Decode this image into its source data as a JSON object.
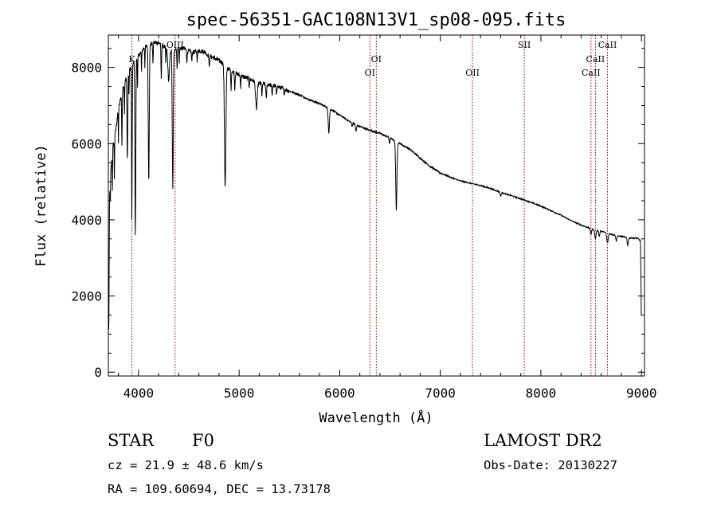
{
  "chart_data": {
    "type": "line",
    "title": "spec-56351-GAC108N13V1_sp08-095.fits",
    "xlabel": "Wavelength (Å)",
    "ylabel": "Flux (relative)",
    "xlim": [
      3700,
      9030
    ],
    "ylim": [
      -100,
      8850
    ],
    "x_ticks": [
      4000,
      5000,
      6000,
      7000,
      8000,
      9000
    ],
    "y_ticks": [
      0,
      2000,
      4000,
      6000,
      8000
    ],
    "grid": false,
    "line_color": "#000000",
    "marker_color": "#8b0000",
    "continuum": [
      [
        3705,
        1100
      ],
      [
        3712,
        4600
      ],
      [
        3725,
        5300
      ],
      [
        3745,
        5900
      ],
      [
        3770,
        6300
      ],
      [
        3800,
        6900
      ],
      [
        3830,
        7300
      ],
      [
        3860,
        7600
      ],
      [
        3900,
        7900
      ],
      [
        3950,
        8100
      ],
      [
        4000,
        8300
      ],
      [
        4050,
        8500
      ],
      [
        4100,
        8600
      ],
      [
        4150,
        8650
      ],
      [
        4200,
        8650
      ],
      [
        4250,
        8550
      ],
      [
        4300,
        8450
      ],
      [
        4350,
        8500
      ],
      [
        4400,
        8500
      ],
      [
        4450,
        8500
      ],
      [
        4500,
        8420
      ],
      [
        4550,
        8400
      ],
      [
        4600,
        8440
      ],
      [
        4650,
        8420
      ],
      [
        4700,
        8300
      ],
      [
        4750,
        8250
      ],
      [
        4800,
        8180
      ],
      [
        4850,
        8100
      ],
      [
        4900,
        7950
      ],
      [
        4950,
        7870
      ],
      [
        5000,
        7800
      ],
      [
        5100,
        7700
      ],
      [
        5200,
        7580
      ],
      [
        5300,
        7550
      ],
      [
        5400,
        7480
      ],
      [
        5500,
        7380
      ],
      [
        5600,
        7280
      ],
      [
        5700,
        7150
      ],
      [
        5800,
        7050
      ],
      [
        5900,
        6920
      ],
      [
        6000,
        6750
      ],
      [
        6100,
        6580
      ],
      [
        6200,
        6450
      ],
      [
        6300,
        6350
      ],
      [
        6400,
        6270
      ],
      [
        6500,
        6150
      ],
      [
        6600,
        6000
      ],
      [
        6700,
        5850
      ],
      [
        6800,
        5620
      ],
      [
        6900,
        5400
      ],
      [
        7000,
        5230
      ],
      [
        7100,
        5120
      ],
      [
        7200,
        5020
      ],
      [
        7300,
        4960
      ],
      [
        7400,
        4900
      ],
      [
        7500,
        4820
      ],
      [
        7600,
        4720
      ],
      [
        7700,
        4640
      ],
      [
        7800,
        4550
      ],
      [
        7900,
        4460
      ],
      [
        8000,
        4360
      ],
      [
        8100,
        4240
      ],
      [
        8200,
        4120
      ],
      [
        8300,
        3980
      ],
      [
        8400,
        3860
      ],
      [
        8500,
        3770
      ],
      [
        8600,
        3700
      ],
      [
        8700,
        3620
      ],
      [
        8800,
        3560
      ],
      [
        8900,
        3520
      ],
      [
        8960,
        3520
      ],
      [
        8990,
        3450
      ],
      [
        8995,
        2500
      ],
      [
        9000,
        800
      ]
    ],
    "absorption": [
      [
        3720,
        600,
        2
      ],
      [
        3740,
        1000,
        2
      ],
      [
        3760,
        1100,
        2
      ],
      [
        3800,
        900,
        2
      ],
      [
        3835,
        1400,
        3
      ],
      [
        3860,
        800,
        2
      ],
      [
        3889,
        2200,
        4
      ],
      [
        3905,
        700,
        2
      ],
      [
        3933.7,
        4100,
        3
      ],
      [
        3968.5,
        4600,
        4
      ],
      [
        3990,
        800,
        2
      ],
      [
        4030,
        600,
        2
      ],
      [
        4063,
        500,
        2
      ],
      [
        4101.7,
        3600,
        5
      ],
      [
        4143,
        500,
        3
      ],
      [
        4226,
        900,
        3
      ],
      [
        4271,
        400,
        2
      ],
      [
        4300,
        800,
        8
      ],
      [
        4340.5,
        3700,
        5
      ],
      [
        4383,
        500,
        3
      ],
      [
        4405,
        400,
        2
      ],
      [
        4481,
        300,
        3
      ],
      [
        4530,
        250,
        3
      ],
      [
        4584,
        250,
        3
      ],
      [
        4703,
        300,
        3
      ],
      [
        4861.3,
        3200,
        7
      ],
      [
        4920,
        500,
        3
      ],
      [
        4957,
        450,
        3
      ],
      [
        5015,
        300,
        3
      ],
      [
        5100,
        200,
        3
      ],
      [
        5172,
        700,
        8
      ],
      [
        5227,
        350,
        3
      ],
      [
        5270,
        400,
        4
      ],
      [
        5328,
        300,
        3
      ],
      [
        5371,
        200,
        3
      ],
      [
        5447,
        200,
        3
      ],
      [
        5892,
        650,
        6
      ],
      [
        6122,
        100,
        4
      ],
      [
        6162,
        180,
        5
      ],
      [
        6495,
        150,
        4
      ],
      [
        6562.8,
        1800,
        6
      ],
      [
        7600,
        100,
        5
      ],
      [
        8498,
        150,
        6
      ],
      [
        8542,
        220,
        7
      ],
      [
        8580,
        150,
        5
      ],
      [
        8662,
        250,
        7
      ],
      [
        8750,
        150,
        5
      ],
      [
        8863,
        200,
        6
      ]
    ],
    "line_markers": [
      {
        "label": "K",
        "wavelength": 3933.7,
        "label_row": 1
      },
      {
        "label": "OIII",
        "wavelength": 4363.2,
        "label_row": 0
      },
      {
        "label": "OI",
        "wavelength": 6300.3,
        "label_row": 2
      },
      {
        "label": "OI",
        "wavelength": 6363.8,
        "label_row": 1
      },
      {
        "label": "OII",
        "wavelength": 7320.0,
        "label_row": 2
      },
      {
        "label": "SII",
        "wavelength": 7835.0,
        "label_row": 0
      },
      {
        "label": "CaII",
        "wavelength": 8498.0,
        "label_row": 2
      },
      {
        "label": "CaII",
        "wavelength": 8542.1,
        "label_row": 1
      },
      {
        "label": "CaII",
        "wavelength": 8662.1,
        "label_row": 0
      }
    ]
  },
  "info": {
    "object_class": "STAR",
    "subclass": "F0",
    "survey": "LAMOST DR2",
    "cz": "cz = 21.9 ± 48.6 km/s",
    "obs_date": "Obs-Date: 20130227",
    "coords": "RA = 109.60694, DEC =  13.73178"
  }
}
